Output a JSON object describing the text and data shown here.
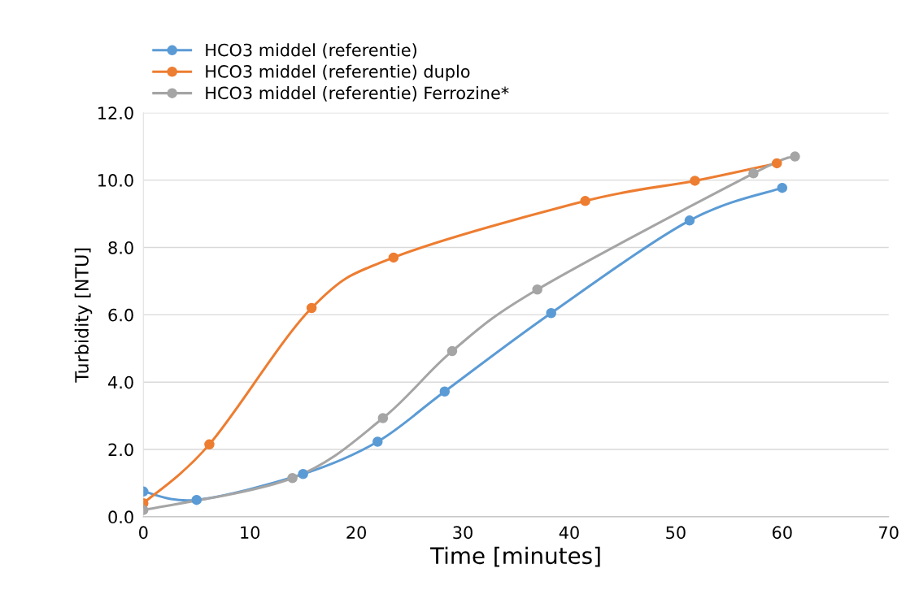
{
  "chart_data": {
    "type": "line",
    "xlabel": "Time [minutes]",
    "ylabel": "Turbidity [NTU]",
    "xlim": [
      0,
      70
    ],
    "xticks": [
      0,
      10,
      20,
      30,
      40,
      50,
      60,
      70
    ],
    "ylim": [
      0,
      12
    ],
    "yticks": [
      {
        "value": 0,
        "label": "0.0"
      },
      {
        "value": 2,
        "label": "2.0"
      },
      {
        "value": 4,
        "label": "4.0"
      },
      {
        "value": 6,
        "label": "6.0"
      },
      {
        "value": 8,
        "label": "8.0"
      },
      {
        "value": 10,
        "label": "10.0"
      },
      {
        "value": 12,
        "label": "12.0"
      }
    ],
    "grid": "y",
    "legend": "top left",
    "marker": "circle",
    "line_style": "solid",
    "series": [
      {
        "name": "HCO3 middel (referentie)",
        "color": "#5b9bd5",
        "x": [
          0,
          5,
          15,
          22,
          28.3,
          38.3,
          51.3,
          60
        ],
        "values": [
          0.75,
          0.5,
          1.27,
          2.23,
          3.72,
          6.05,
          8.8,
          9.77
        ]
      },
      {
        "name": "HCO3 middel (referentie) duplo",
        "color": "#ed7d31",
        "x": [
          0,
          6.2,
          15.8,
          23.5,
          41.5,
          51.8,
          59.5
        ],
        "values": [
          0.4,
          2.15,
          6.2,
          7.7,
          9.38,
          9.98,
          10.5
        ]
      },
      {
        "name": "HCO3 middel (referentie) Ferrozine*",
        "color": "#a5a5a5",
        "x": [
          0,
          14,
          22.5,
          29,
          37,
          57.3,
          61.2
        ],
        "values": [
          0.2,
          1.15,
          2.93,
          4.92,
          6.75,
          10.2,
          10.7
        ]
      }
    ]
  }
}
